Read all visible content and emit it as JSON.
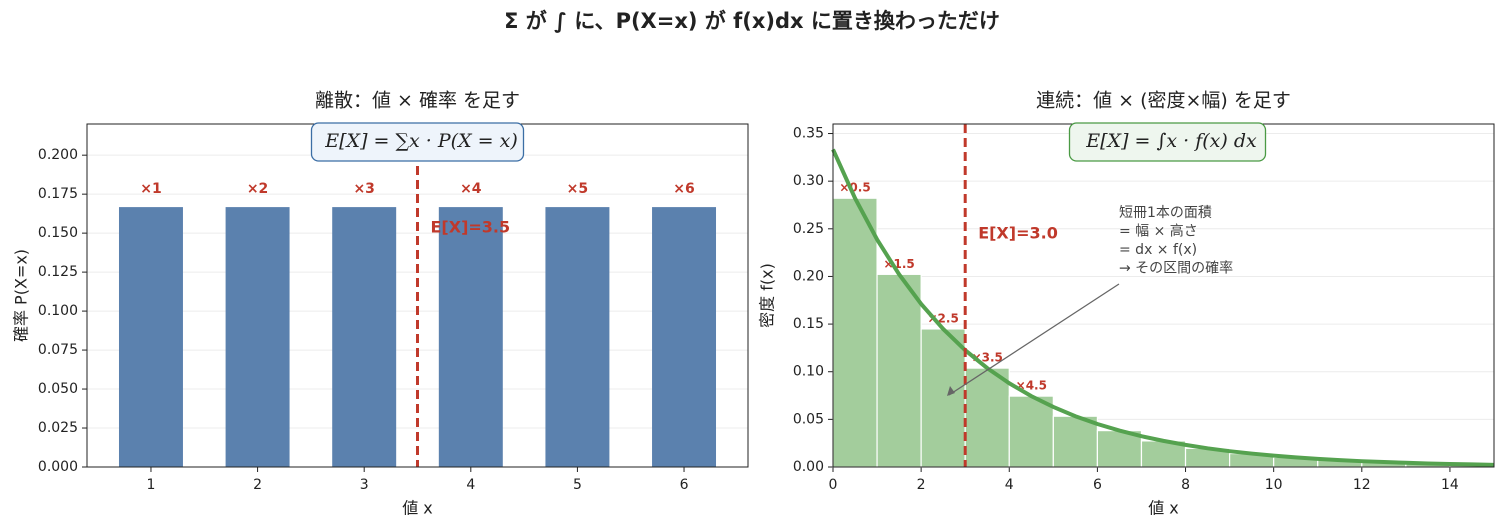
{
  "suptitle": "Σ が ∫ に、P(X=x) が f(x)dx に置き換わっただけ",
  "chart_data": [
    {
      "type": "bar",
      "title": "離散：値 × 確率 を足す",
      "formula": "E[X] = ∑x · P(X = x)",
      "x": [
        1,
        2,
        3,
        4,
        5,
        6
      ],
      "values": [
        0.1667,
        0.1667,
        0.1667,
        0.1667,
        0.1667,
        0.1667
      ],
      "bar_annotations": [
        "×1",
        "×2",
        "×3",
        "×4",
        "×5",
        "×6"
      ],
      "color": "#5b81ae",
      "xlim": [
        0.4,
        6.6
      ],
      "xticks": [
        1,
        2,
        3,
        4,
        5,
        6
      ],
      "ylim": [
        0,
        0.22
      ],
      "yticks": [
        {
          "value": 0,
          "label": "0.000"
        },
        {
          "value": 0.025,
          "label": "0.025"
        },
        {
          "value": 0.05,
          "label": "0.050"
        },
        {
          "value": 0.075,
          "label": "0.075"
        },
        {
          "value": 0.1,
          "label": "0.100"
        },
        {
          "value": 0.125,
          "label": "0.125"
        },
        {
          "value": 0.15,
          "label": "0.150"
        },
        {
          "value": 0.175,
          "label": "0.175"
        },
        {
          "value": 0.2,
          "label": "0.200"
        }
      ],
      "xlabel": "値 x",
      "ylabel": "確率 P(X=x)",
      "grid": true,
      "vline": {
        "x": 3.5,
        "label": "E[X]=3.5",
        "color": "#c0392b"
      }
    },
    {
      "type": "histogram",
      "title": "連続：値 × (密度×幅) を足す",
      "formula": "E[X] = ∫x · f(x) dx",
      "bins": [
        0,
        1,
        2,
        3,
        4,
        5,
        6,
        7,
        8,
        9,
        10,
        11,
        12,
        13,
        14,
        15
      ],
      "values": [
        0.2821,
        0.2022,
        0.1449,
        0.1038,
        0.0744,
        0.0533,
        0.0382,
        0.0274,
        0.0196,
        0.0141,
        0.0101,
        0.0072,
        0.0052,
        0.0037,
        0.0027
      ],
      "bar_annotations": [
        "×0.5",
        "×1.5",
        "×2.5",
        "×3.5",
        "×4.5"
      ],
      "color": "#a3cd9c",
      "curve": {
        "color": "#55a24f",
        "x": [
          0,
          0.5,
          1,
          1.5,
          2,
          2.5,
          3,
          3.5,
          4,
          4.5,
          5,
          5.5,
          6,
          6.5,
          7,
          7.5,
          8,
          8.5,
          9,
          9.5,
          10,
          10.5,
          11,
          11.5,
          12,
          12.5,
          13,
          13.5,
          14,
          14.5,
          15
        ],
        "values": [
          0.3333,
          0.2821,
          0.2388,
          0.2022,
          0.1711,
          0.1449,
          0.1226,
          0.1038,
          0.0879,
          0.0744,
          0.063,
          0.0533,
          0.0451,
          0.0382,
          0.0323,
          0.0274,
          0.0232,
          0.0196,
          0.0166,
          0.0141,
          0.0119,
          0.0101,
          0.0085,
          0.0072,
          0.0061,
          0.0052,
          0.0044,
          0.0037,
          0.0031,
          0.0027,
          0.0022
        ]
      },
      "xlim": [
        0,
        15
      ],
      "xticks": [
        0,
        2,
        4,
        6,
        8,
        10,
        12,
        14
      ],
      "ylim": [
        0,
        0.36
      ],
      "yticks": [
        {
          "value": 0,
          "label": "0.00"
        },
        {
          "value": 0.05,
          "label": "0.05"
        },
        {
          "value": 0.1,
          "label": "0.10"
        },
        {
          "value": 0.15,
          "label": "0.15"
        },
        {
          "value": 0.2,
          "label": "0.20"
        },
        {
          "value": 0.25,
          "label": "0.25"
        },
        {
          "value": 0.3,
          "label": "0.30"
        },
        {
          "value": 0.35,
          "label": "0.35"
        }
      ],
      "xlabel": "値 x",
      "ylabel": "密度 f(x)",
      "grid": true,
      "vline": {
        "x": 3,
        "label": "E[X]=3.0",
        "color": "#c0392b"
      },
      "annotation": {
        "lines": [
          "短冊1本の面積",
          "= 幅 × 高さ",
          "= dx × f(x)",
          "→ その区間の確率"
        ]
      }
    }
  ]
}
